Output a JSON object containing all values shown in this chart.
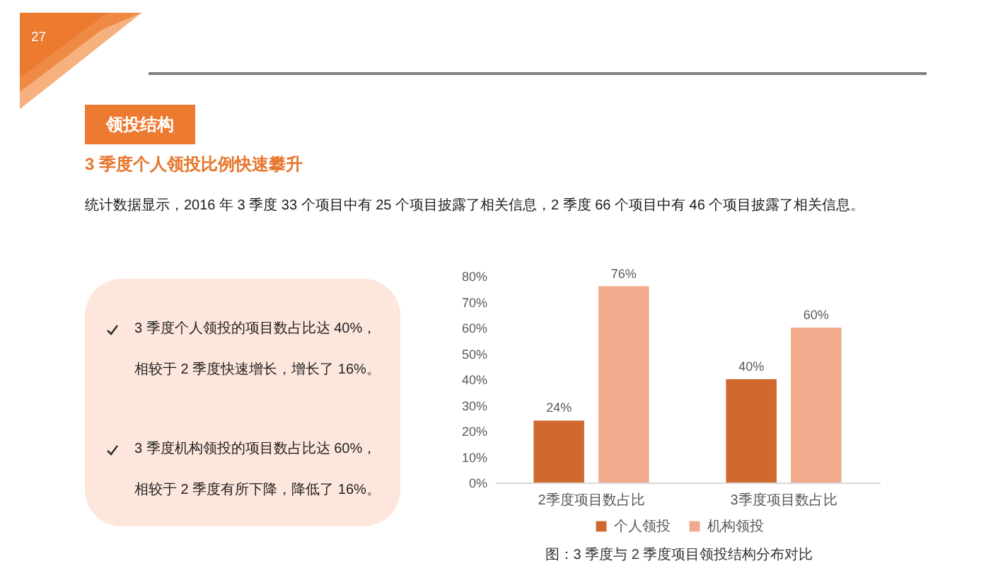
{
  "chart_data": {
    "type": "bar",
    "title": "领投结构",
    "subtitle": "3 季度个人领投比例快速攀升",
    "categories": [
      "2季度项目数占比",
      "3季度项目数占比"
    ],
    "series": [
      {
        "name": "个人领投",
        "color": "#d0692d",
        "values": [
          24,
          40
        ],
        "value_labels": [
          "24%",
          "40%"
        ]
      },
      {
        "name": "机构领投",
        "color": "#f2aa8c",
        "values": [
          76,
          60
        ],
        "value_labels": [
          "76%",
          "60%"
        ]
      }
    ],
    "ylim": [
      0,
      80
    ],
    "yticks": [
      {
        "value": 0,
        "label": "0%"
      },
      {
        "value": 10,
        "label": "10%"
      },
      {
        "value": 20,
        "label": "20%"
      },
      {
        "value": 30,
        "label": "30%"
      },
      {
        "value": 40,
        "label": "40%"
      },
      {
        "value": 50,
        "label": "50%"
      },
      {
        "value": 60,
        "label": "60%"
      },
      {
        "value": 70,
        "label": "70%"
      },
      {
        "value": 80,
        "label": "80%"
      }
    ],
    "legend": "bottom",
    "annotations": [
      "27",
      "统计数据显示，2016 年 3 季度 33 个项目中有 25 个项目披露了相关信息，2 季度 66 个项目中有 46 个项目披露了相关信息。",
      "3 季度个人领投的项目数占比达 40%，相较于 2 季度快速增长，增长了 16%。",
      "3 季度机构领投的项目数占比达 60%，相较于 2 季度有所下降，降低了 16%。",
      "图：3 季度与 2 季度项目领投结构分布对比"
    ]
  }
}
